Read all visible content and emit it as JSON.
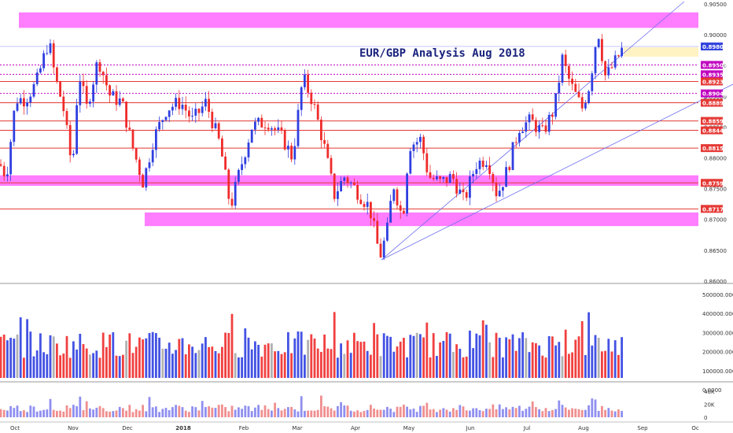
{
  "chart_data": {
    "type": "candlestick",
    "title": "EUR/GBP Analysis Aug 2018",
    "symbol": "EUR/GBP",
    "price_axis": {
      "range": [
        0.86,
        0.9055
      ],
      "ticks": [
        "0.90500",
        "0.90000",
        "0.89500",
        "0.89000",
        "0.88500",
        "0.88000",
        "0.87500",
        "0.87000",
        "0.86500",
        "0.86000"
      ]
    },
    "x_axis_labels": [
      "Oct",
      "Nov",
      "Dec",
      "2018",
      "Feb",
      "Mar",
      "Apr",
      "May",
      "Jun",
      "Jul",
      "Aug",
      "Sep",
      "Oc"
    ],
    "last_price": "0.89800",
    "horizontal_levels": [
      {
        "label": "0.89502",
        "value": 0.89502,
        "style": "dotted",
        "color": "#c000c0"
      },
      {
        "label": "0.89351",
        "value": 0.89351,
        "style": "dotted",
        "color": "#c000c0"
      },
      {
        "label": "0.89235",
        "value": 0.89235,
        "style": "solid",
        "color": "#e53935"
      },
      {
        "label": "0.89042",
        "value": 0.89042,
        "style": "dotted",
        "color": "#c000c0"
      },
      {
        "label": "0.88891",
        "value": 0.88891,
        "style": "solid",
        "color": "#e53935"
      },
      {
        "label": "0.88598",
        "value": 0.88598,
        "style": "solid",
        "color": "#e53935"
      },
      {
        "label": "0.88446",
        "value": 0.88446,
        "style": "solid",
        "color": "#e53935"
      },
      {
        "label": "0.88159",
        "value": 0.88159,
        "style": "solid",
        "color": "#e53935"
      },
      {
        "label": "0.87598",
        "value": 0.87598,
        "style": "solid",
        "color": "#e53935"
      },
      {
        "label": "0.87178",
        "value": 0.87178,
        "style": "solid",
        "color": "#e53935"
      }
    ],
    "zones": [
      {
        "low": 0.901,
        "high": 0.9035,
        "color": "#ff66ff"
      },
      {
        "low": 0.8755,
        "high": 0.8772,
        "color": "#ff66ff"
      },
      {
        "low": 0.869,
        "high": 0.8712,
        "color": "#ff66ff"
      }
    ],
    "channel_lines": [
      {
        "from": [
          "Apr",
          0.8635
        ],
        "to": [
          "Sep",
          0.9055
        ]
      },
      {
        "from": [
          "Apr",
          0.8635
        ],
        "to": [
          "Oc",
          0.891
        ]
      }
    ],
    "volume_axis": {
      "ticks": [
        "500000.0000",
        "400000.0000",
        "300000.0000",
        "200000.0000",
        "100000.0000",
        "0.0000"
      ]
    },
    "indicator_axis": {
      "ticks": [
        "40K",
        "20K",
        "0"
      ]
    },
    "colors": {
      "up": "#2f3fe0",
      "down": "#ef2b2b",
      "neutral": "#a8a8a8",
      "zone": "#ff66ff"
    }
  }
}
